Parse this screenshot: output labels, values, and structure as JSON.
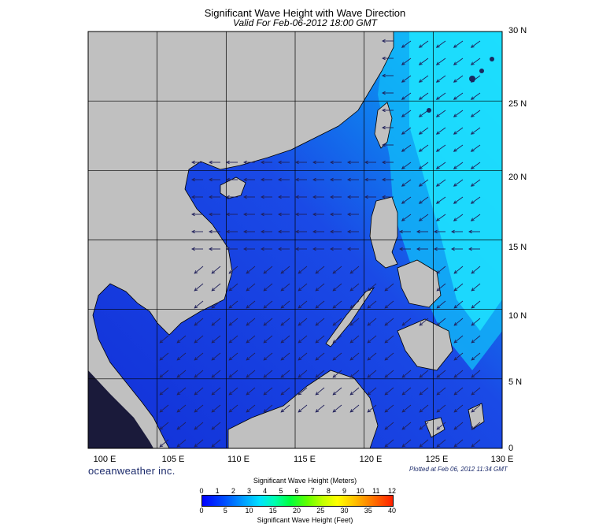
{
  "header": {
    "title": "Significant Wave Height with Wave Direction",
    "subtitle": "Valid For Feb-06-2012 18:00 GMT"
  },
  "map": {
    "lat_labels": [
      "30 N",
      "25 N",
      "20 N",
      "15 N",
      "10 N",
      "5 N",
      "0"
    ],
    "lon_labels": [
      "100 E",
      "105 E",
      "110 E",
      "115 E",
      "120 E",
      "125 E",
      "130 E"
    ],
    "lat_range": [
      0,
      30
    ],
    "lon_range": [
      100,
      130
    ],
    "land_color": "#c0c0c0",
    "sea_low_color": "#1a3be0",
    "sea_high_color": "#10e0ff"
  },
  "footer": {
    "brand": "oceanweather inc.",
    "plotted": "Plotted at Feb 06, 2012 11:34 GMT"
  },
  "legend": {
    "meters_title": "Significant Wave Height (Meters)",
    "feet_title": "Significant Wave Height (Feet)",
    "meters_ticks": [
      "0",
      "1",
      "2",
      "3",
      "4",
      "5",
      "6",
      "7",
      "8",
      "9",
      "10",
      "11",
      "12"
    ],
    "feet_ticks": [
      "0",
      "5",
      "10",
      "15",
      "20",
      "25",
      "30",
      "35",
      "40"
    ]
  }
}
